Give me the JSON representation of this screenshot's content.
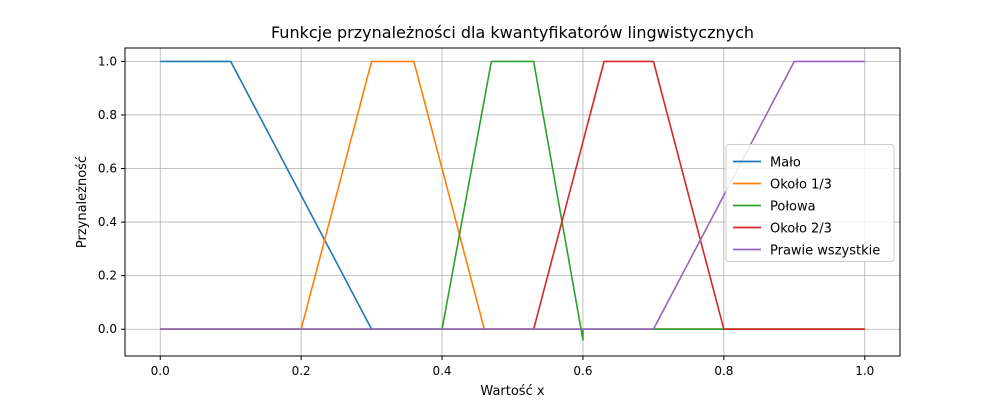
{
  "chart_data": {
    "type": "line",
    "title": "Funkcje przynależności dla kwantyfikatorów lingwistycznych",
    "xlabel": "Wartość x",
    "ylabel": "Przynależność",
    "xlim": [
      -0.05,
      1.05
    ],
    "ylim": [
      -0.1,
      1.05
    ],
    "xticks": [
      0.0,
      0.2,
      0.4,
      0.6,
      0.8,
      1.0
    ],
    "xtick_labels": [
      "0.0",
      "0.2",
      "0.4",
      "0.6",
      "0.8",
      "1.0"
    ],
    "yticks": [
      0.0,
      0.2,
      0.4,
      0.6,
      0.8,
      1.0
    ],
    "ytick_labels": [
      "0.0",
      "0.2",
      "0.4",
      "0.6",
      "0.8",
      "1.0"
    ],
    "grid": true,
    "legend_position": "center-right",
    "series": [
      {
        "name": "Mało",
        "color": "#1f77b4",
        "x": [
          0.0,
          0.1,
          0.3,
          1.0
        ],
        "y": [
          1.0,
          1.0,
          0.0,
          0.0
        ]
      },
      {
        "name": "Około 1/3",
        "color": "#ff7f0e",
        "x": [
          0.0,
          0.2,
          0.3,
          0.36,
          0.46,
          1.0
        ],
        "y": [
          0.0,
          0.0,
          1.0,
          1.0,
          0.0,
          0.0
        ]
      },
      {
        "name": "Połowa",
        "color": "#2ca02c",
        "x": [
          0.0,
          0.4,
          0.47,
          0.53,
          0.6,
          0.6,
          0.8,
          1.0
        ],
        "y": [
          0.0,
          0.0,
          1.0,
          1.0,
          -0.04,
          0.0,
          0.0,
          0.0
        ]
      },
      {
        "name": "Około 2/3",
        "color": "#d62728",
        "x": [
          0.0,
          0.53,
          0.63,
          0.7,
          0.8,
          1.0
        ],
        "y": [
          0.0,
          0.0,
          1.0,
          1.0,
          0.0,
          0.0
        ]
      },
      {
        "name": "Prawie wszystkie",
        "color": "#9467bd",
        "x": [
          0.0,
          0.7,
          0.9,
          1.0
        ],
        "y": [
          0.0,
          0.0,
          1.0,
          1.0
        ]
      }
    ]
  }
}
